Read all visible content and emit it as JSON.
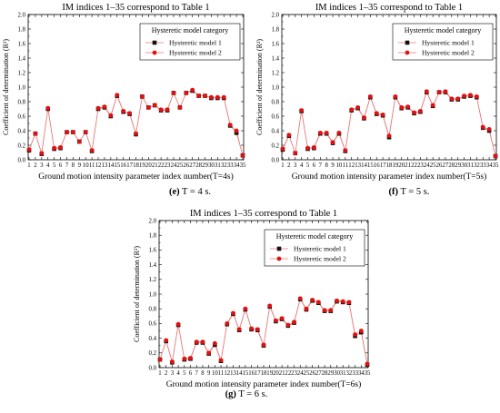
{
  "colors": {
    "model1": "#111111",
    "model2": "#e31010",
    "line": "#e87878"
  },
  "chart_data": [
    {
      "type": "line",
      "title": "IM indices 1–35 correspond to Table 1",
      "xlabel": "Ground motion intensity parameter index number(T=4s)",
      "ylabel": "Coefficient of determination (R²)",
      "caption_label": "(e)",
      "caption_text": "T = 4 s.",
      "legend_title": "Hysteretic model category",
      "legend_position": "top-right",
      "grid": false,
      "ylim": [
        0,
        2.0
      ],
      "yticks": [
        "0.0",
        "0.2",
        "0.4",
        "0.6",
        "0.8",
        "1.0",
        "1.2",
        "1.4",
        "1.6",
        "1.8",
        "2.0"
      ],
      "x": [
        1,
        2,
        3,
        4,
        5,
        6,
        7,
        8,
        9,
        10,
        11,
        12,
        13,
        14,
        15,
        16,
        17,
        18,
        19,
        20,
        21,
        22,
        23,
        24,
        25,
        26,
        27,
        28,
        29,
        30,
        31,
        32,
        33,
        34,
        35
      ],
      "series": [
        {
          "name": "Hysteretic model 1",
          "marker": "square",
          "values": [
            0.13,
            0.36,
            0.08,
            0.7,
            0.15,
            0.16,
            0.38,
            0.38,
            0.25,
            0.38,
            0.12,
            0.7,
            0.72,
            0.6,
            0.88,
            0.66,
            0.63,
            0.35,
            0.87,
            0.72,
            0.75,
            0.68,
            0.68,
            0.92,
            0.72,
            0.92,
            0.95,
            0.88,
            0.88,
            0.85,
            0.85,
            0.85,
            0.47,
            0.37,
            0.06
          ]
        },
        {
          "name": "Hysteretic model 2",
          "marker": "circle",
          "values": [
            0.14,
            0.36,
            0.09,
            0.71,
            0.16,
            0.17,
            0.38,
            0.38,
            0.25,
            0.38,
            0.13,
            0.71,
            0.73,
            0.61,
            0.89,
            0.67,
            0.64,
            0.36,
            0.87,
            0.72,
            0.75,
            0.69,
            0.69,
            0.92,
            0.72,
            0.92,
            0.96,
            0.88,
            0.88,
            0.86,
            0.86,
            0.86,
            0.48,
            0.4,
            0.06
          ]
        }
      ]
    },
    {
      "type": "line",
      "title": "IM indices 1–35 correspond to Table 1",
      "xlabel": "Ground motion intensity parameter index number(T=5s)",
      "ylabel": "Coefficient of determination (R²)",
      "caption_label": "(f)",
      "caption_text": "T = 5 s.",
      "legend_title": "Hysteretic model category",
      "legend_position": "top-right",
      "grid": false,
      "ylim": [
        0,
        2.0
      ],
      "yticks": [
        "0.0",
        "0.2",
        "0.4",
        "0.6",
        "0.8",
        "1.0",
        "1.2",
        "1.4",
        "1.6",
        "1.8",
        "2.0"
      ],
      "x": [
        1,
        2,
        3,
        4,
        5,
        6,
        7,
        8,
        9,
        10,
        11,
        12,
        13,
        14,
        15,
        16,
        17,
        18,
        19,
        20,
        21,
        22,
        23,
        24,
        25,
        26,
        27,
        28,
        29,
        30,
        31,
        32,
        33,
        34,
        35
      ],
      "series": [
        {
          "name": "Hysteretic model 1",
          "marker": "square",
          "values": [
            0.14,
            0.33,
            0.09,
            0.67,
            0.15,
            0.16,
            0.36,
            0.36,
            0.23,
            0.36,
            0.12,
            0.68,
            0.71,
            0.57,
            0.86,
            0.63,
            0.61,
            0.31,
            0.86,
            0.71,
            0.72,
            0.64,
            0.66,
            0.93,
            0.74,
            0.93,
            0.93,
            0.83,
            0.83,
            0.87,
            0.88,
            0.86,
            0.44,
            0.4,
            0.05
          ]
        },
        {
          "name": "Hysteretic model 2",
          "marker": "circle",
          "values": [
            0.15,
            0.34,
            0.09,
            0.68,
            0.16,
            0.17,
            0.37,
            0.37,
            0.24,
            0.37,
            0.13,
            0.69,
            0.72,
            0.58,
            0.87,
            0.64,
            0.62,
            0.33,
            0.87,
            0.72,
            0.73,
            0.65,
            0.67,
            0.94,
            0.75,
            0.93,
            0.94,
            0.84,
            0.84,
            0.88,
            0.89,
            0.87,
            0.45,
            0.42,
            0.05
          ]
        }
      ]
    },
    {
      "type": "line",
      "title": "IM indices 1–35 correspond to Table 1",
      "xlabel": "Ground motion intensity parameter index number(T=6s)",
      "ylabel": "Coefficient of determination (R²)",
      "caption_label": "(g)",
      "caption_text": "T = 6 s.",
      "legend_title": "Hysteretic model category",
      "legend_position": "top-right",
      "grid": false,
      "ylim": [
        0,
        2.0
      ],
      "yticks": [
        "0.0",
        "0.2",
        "0.4",
        "0.6",
        "0.8",
        "1.0",
        "1.2",
        "1.4",
        "1.6",
        "1.8",
        "2.0"
      ],
      "x": [
        1,
        2,
        3,
        4,
        5,
        6,
        7,
        8,
        9,
        10,
        11,
        12,
        13,
        14,
        15,
        16,
        17,
        18,
        19,
        20,
        21,
        22,
        23,
        24,
        25,
        26,
        27,
        28,
        29,
        30,
        31,
        32,
        33,
        34,
        35
      ],
      "series": [
        {
          "name": "Hysteretic model 1",
          "marker": "square",
          "values": [
            0.11,
            0.36,
            0.07,
            0.58,
            0.11,
            0.12,
            0.34,
            0.34,
            0.19,
            0.31,
            0.09,
            0.59,
            0.73,
            0.51,
            0.79,
            0.52,
            0.51,
            0.3,
            0.83,
            0.63,
            0.66,
            0.57,
            0.61,
            0.93,
            0.79,
            0.91,
            0.88,
            0.77,
            0.77,
            0.9,
            0.89,
            0.88,
            0.43,
            0.48,
            0.04
          ]
        },
        {
          "name": "Hysteretic model 2",
          "marker": "circle",
          "values": [
            0.11,
            0.37,
            0.08,
            0.59,
            0.12,
            0.13,
            0.35,
            0.35,
            0.2,
            0.33,
            0.1,
            0.6,
            0.74,
            0.52,
            0.8,
            0.53,
            0.52,
            0.31,
            0.84,
            0.64,
            0.67,
            0.58,
            0.62,
            0.94,
            0.8,
            0.92,
            0.89,
            0.78,
            0.78,
            0.91,
            0.9,
            0.89,
            0.45,
            0.5,
            0.05
          ]
        }
      ]
    }
  ]
}
